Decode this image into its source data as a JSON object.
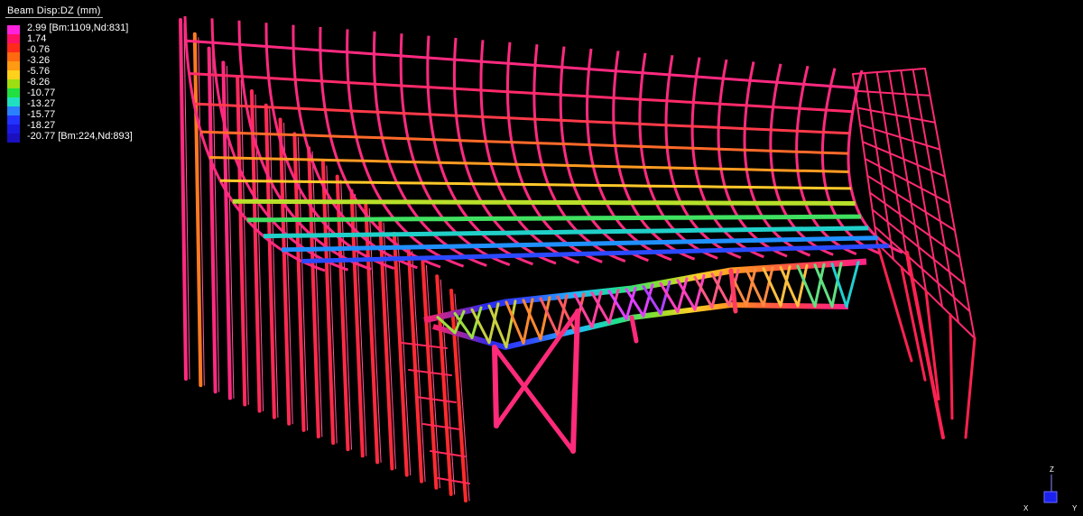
{
  "legend": {
    "title": "Beam Disp:DZ  (mm)",
    "labels": [
      "2.99 [Bm:1109,Nd:831]",
      "1.74",
      "-0.76",
      "-3.26",
      "-5.76",
      "-8.26",
      "-10.77",
      "-13.27",
      "-15.77",
      "-18.27",
      "-20.77 [Bm:224,Nd:893]"
    ],
    "colors": [
      "#ff22dd",
      "#ff1166",
      "#ff2a1a",
      "#ff6a10",
      "#ff9a12",
      "#ffd11a",
      "#9ddf10",
      "#22e040",
      "#20e0c0",
      "#2a80ff",
      "#2233ff",
      "#1a1ae0",
      "#1a10c0"
    ]
  },
  "triad": {
    "z": "Z",
    "x": "X",
    "y": "Y",
    "box_color": "#1c22ee"
  }
}
